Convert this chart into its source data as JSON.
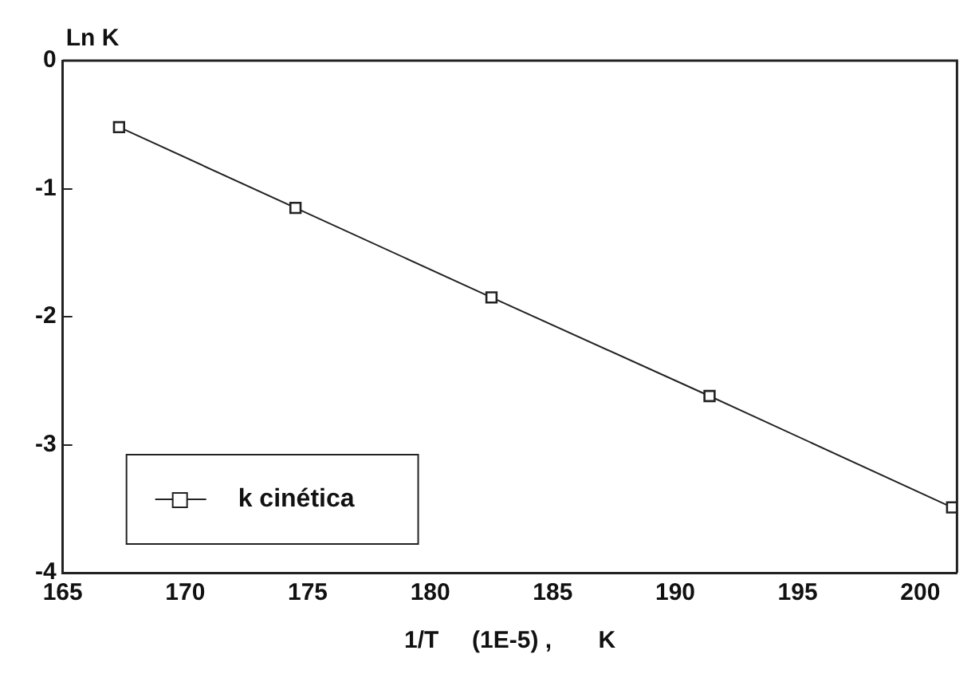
{
  "chart_data": {
    "type": "line",
    "xlabel": "1/T     (1E-5) ,       K",
    "ylabel": "Ln K",
    "x": [
      167.3,
      174.5,
      182.5,
      191.4,
      201.3
    ],
    "series": [
      {
        "name": "k cinética",
        "color": "#222222",
        "values": [
          -0.52,
          -1.15,
          -1.85,
          -2.62,
          -3.49
        ]
      }
    ],
    "xlim": [
      165,
      201.5
    ],
    "xticks": [
      165,
      170,
      175,
      180,
      185,
      190,
      195,
      200
    ],
    "ylim": [
      -4,
      0
    ],
    "yticks": [
      -4,
      -3,
      -2,
      -1,
      0
    ],
    "grid": false,
    "legend": "bottom left",
    "marker": "square",
    "line_style": "solid"
  }
}
